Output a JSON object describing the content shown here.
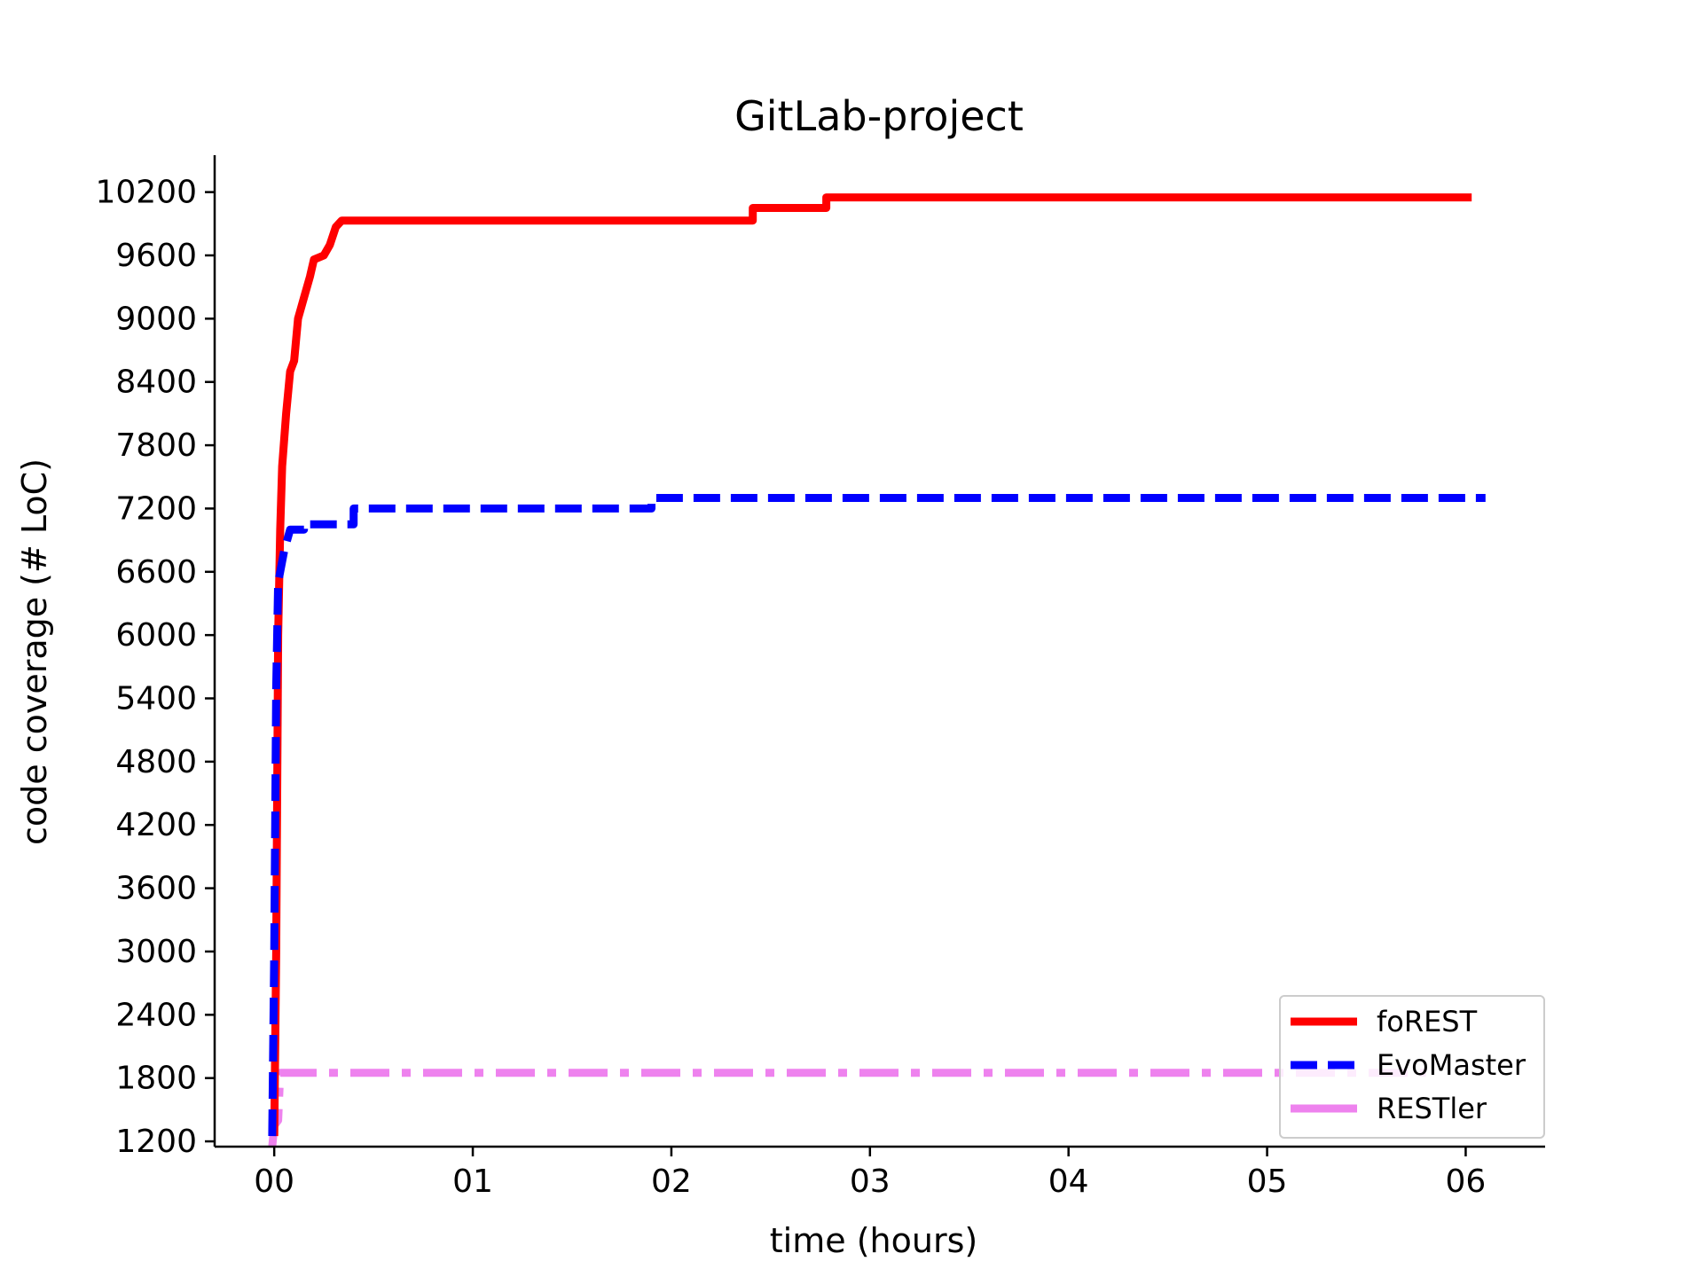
{
  "chart_data": {
    "type": "line",
    "title": "GitLab-project",
    "xlabel": "time (hours)",
    "ylabel": "code coverage (# LoC)",
    "xlim": [
      -0.3,
      6.4
    ],
    "ylim": [
      1150,
      10550
    ],
    "xticks": [
      0,
      1,
      2,
      3,
      4,
      5,
      6
    ],
    "xtick_labels": [
      "00",
      "01",
      "02",
      "03",
      "04",
      "05",
      "06"
    ],
    "yticks": [
      1200,
      1800,
      2400,
      3000,
      3600,
      4200,
      4800,
      5400,
      6000,
      6600,
      7200,
      7800,
      8400,
      9000,
      9600,
      10200
    ],
    "ytick_labels": [
      "1200",
      "1800",
      "2400",
      "3000",
      "3600",
      "4200",
      "4800",
      "5400",
      "6000",
      "6600",
      "7200",
      "7800",
      "8400",
      "9000",
      "9600",
      "10200"
    ],
    "grid": false,
    "legend_position": "lower-right",
    "series": [
      {
        "name": "foREST",
        "color": "#ff0000",
        "style": "solid",
        "points": [
          [
            0.0,
            1250
          ],
          [
            0.01,
            3000
          ],
          [
            0.02,
            6000
          ],
          [
            0.03,
            7000
          ],
          [
            0.04,
            7600
          ],
          [
            0.06,
            8100
          ],
          [
            0.08,
            8500
          ],
          [
            0.1,
            8600
          ],
          [
            0.12,
            9000
          ],
          [
            0.15,
            9200
          ],
          [
            0.18,
            9400
          ],
          [
            0.2,
            9560
          ],
          [
            0.25,
            9600
          ],
          [
            0.28,
            9700
          ],
          [
            0.31,
            9870
          ],
          [
            0.34,
            9930
          ],
          [
            1.0,
            9930
          ],
          [
            2.0,
            9930
          ],
          [
            2.41,
            9930
          ],
          [
            2.41,
            10050
          ],
          [
            2.78,
            10050
          ],
          [
            2.78,
            10150
          ],
          [
            4.0,
            10150
          ],
          [
            5.0,
            10150
          ],
          [
            6.03,
            10150
          ]
        ]
      },
      {
        "name": "EvoMaster",
        "color": "#0000ff",
        "style": "dashed",
        "points": [
          [
            -0.01,
            1250
          ],
          [
            0.0,
            3000
          ],
          [
            0.01,
            5500
          ],
          [
            0.02,
            6500
          ],
          [
            0.05,
            6800
          ],
          [
            0.08,
            7000
          ],
          [
            0.15,
            7000
          ],
          [
            0.15,
            7050
          ],
          [
            0.4,
            7050
          ],
          [
            0.4,
            7200
          ],
          [
            1.0,
            7200
          ],
          [
            1.9,
            7200
          ],
          [
            1.9,
            7300
          ],
          [
            3.0,
            7300
          ],
          [
            5.0,
            7300
          ],
          [
            6.1,
            7300
          ]
        ]
      },
      {
        "name": "RESTler",
        "color": "#ee82ee",
        "style": "dashdot",
        "points": [
          [
            -0.01,
            1150
          ],
          [
            0.0,
            1350
          ],
          [
            0.02,
            1400
          ],
          [
            0.03,
            1850
          ],
          [
            1.0,
            1850
          ],
          [
            3.0,
            1850
          ],
          [
            5.0,
            1850
          ],
          [
            5.8,
            1850
          ]
        ]
      }
    ]
  }
}
